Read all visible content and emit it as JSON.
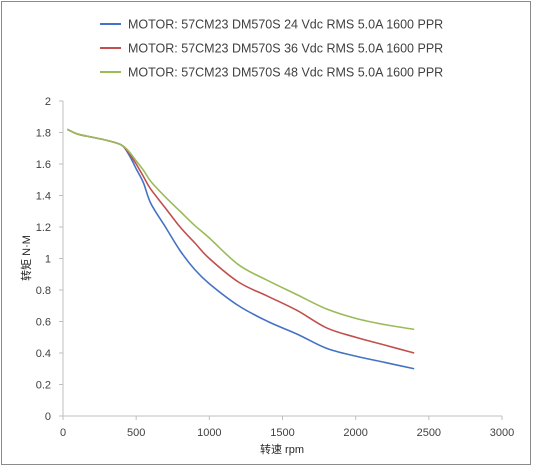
{
  "chart_data": {
    "type": "line",
    "title": "",
    "xlabel": "转速 rpm",
    "ylabel": "转矩 N·M",
    "xlim": [
      0,
      3000
    ],
    "ylim": [
      0,
      2
    ],
    "xticks": [
      0,
      500,
      1000,
      1500,
      2000,
      2500,
      3000
    ],
    "yticks": [
      0,
      0.2,
      0.4,
      0.6,
      0.8,
      1,
      1.2,
      1.4,
      1.6,
      1.8,
      2
    ],
    "grid": false,
    "legend_position": "top",
    "series": [
      {
        "name": "MOTOR: 57CM23 DM570S 24 Vdc  RMS 5.0A  1600 PPR",
        "color": "#4472c4",
        "x": [
          30,
          100,
          200,
          300,
          400,
          450,
          500,
          550,
          600,
          700,
          800,
          900,
          1000,
          1200,
          1400,
          1600,
          1800,
          2000,
          2200,
          2400
        ],
        "y": [
          1.82,
          1.79,
          1.77,
          1.75,
          1.72,
          1.66,
          1.57,
          1.48,
          1.35,
          1.2,
          1.05,
          0.93,
          0.84,
          0.7,
          0.6,
          0.52,
          0.43,
          0.38,
          0.34,
          0.3
        ]
      },
      {
        "name": "MOTOR: 57CM23 DM570S 36 Vdc  RMS 5.0A  1600 PPR",
        "color": "#c0504d",
        "x": [
          30,
          100,
          200,
          300,
          400,
          450,
          500,
          550,
          600,
          700,
          800,
          900,
          1000,
          1200,
          1400,
          1600,
          1800,
          2000,
          2200,
          2400
        ],
        "y": [
          1.82,
          1.79,
          1.77,
          1.75,
          1.72,
          1.67,
          1.6,
          1.52,
          1.44,
          1.32,
          1.2,
          1.1,
          1.0,
          0.85,
          0.76,
          0.67,
          0.56,
          0.5,
          0.45,
          0.4
        ]
      },
      {
        "name": "MOTOR: 57CM23 DM570S 48 Vdc  RMS 5.0A  1600 PPR",
        "color": "#9bbb59",
        "x": [
          30,
          100,
          200,
          300,
          400,
          450,
          500,
          550,
          600,
          700,
          800,
          900,
          1000,
          1200,
          1400,
          1600,
          1800,
          2000,
          2200,
          2400
        ],
        "y": [
          1.82,
          1.79,
          1.77,
          1.75,
          1.72,
          1.68,
          1.62,
          1.56,
          1.49,
          1.39,
          1.3,
          1.21,
          1.13,
          0.96,
          0.86,
          0.77,
          0.68,
          0.62,
          0.58,
          0.55
        ]
      }
    ]
  }
}
